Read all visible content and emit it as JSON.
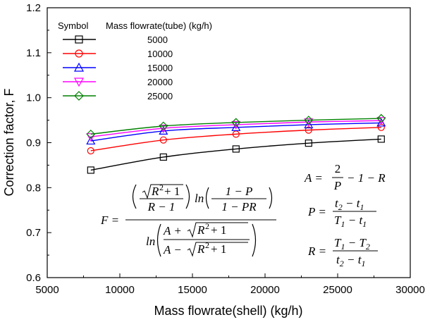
{
  "chart_data": {
    "type": "line",
    "title": "",
    "xlabel": "Mass flowrate(shell) (kg/h)",
    "ylabel": "Correction factor, F",
    "xlim": [
      5000,
      30000
    ],
    "ylim": [
      0.6,
      1.2
    ],
    "xticks": [
      5000,
      10000,
      15000,
      20000,
      25000,
      30000
    ],
    "yticks": [
      0.6,
      0.7,
      0.8,
      0.9,
      1.0,
      1.1,
      1.2
    ],
    "xtick_labels": [
      "5000",
      "10000",
      "15000",
      "20000",
      "25000",
      "30000"
    ],
    "ytick_labels": [
      "0.6",
      "0.7",
      "0.8",
      "0.9",
      "1.0",
      "1.1",
      "1.2"
    ],
    "grid": false,
    "legend": {
      "placement": "top-left",
      "header_symbol": "Symbol",
      "header_label": "Mass flowrate(tube) (kg/h)"
    },
    "x": [
      8000,
      13000,
      18000,
      23000,
      28000
    ],
    "series": [
      {
        "name": "5000",
        "color": "#000000",
        "marker": "square",
        "values": [
          0.839,
          0.868,
          0.886,
          0.899,
          0.908
        ]
      },
      {
        "name": "10000",
        "color": "#ff0000",
        "marker": "circle",
        "values": [
          0.882,
          0.906,
          0.919,
          0.928,
          0.934
        ]
      },
      {
        "name": "15000",
        "color": "#0000ff",
        "marker": "triangle-up",
        "values": [
          0.904,
          0.926,
          0.934,
          0.94,
          0.944
        ]
      },
      {
        "name": "20000",
        "color": "#ff00ff",
        "marker": "triangle-down",
        "values": [
          0.913,
          0.932,
          0.94,
          0.946,
          0.949
        ]
      },
      {
        "name": "25000",
        "color": "#008000",
        "marker": "diamond",
        "values": [
          0.919,
          0.937,
          0.945,
          0.95,
          0.954
        ]
      }
    ],
    "annotations": {
      "formula_F": {
        "lhs": "F =",
        "num_ln": "ln",
        "num_frac_num": "1 − P",
        "num_frac_den": "1 − PR",
        "root_radicand": "R",
        "root_plus": "+ 1",
        "r_minus_1": "R − 1",
        "den_ln": "ln",
        "den_top_a": "A +",
        "den_bot_a": "A −"
      },
      "formula_A": {
        "lhs": "A =",
        "frac_num": "2",
        "frac_den": "P",
        "rest": "− 1 − R"
      },
      "formula_P": {
        "lhs": "P =",
        "num_t": "t",
        "num_sub1": "2",
        "num_mid": " − t",
        "num_sub2": "1",
        "den_T": "T",
        "den_sub1": "1",
        "den_mid": " − t",
        "den_sub2": "1"
      },
      "formula_R": {
        "lhs": "R =",
        "num_T": "T",
        "num_sub1": "1",
        "num_mid": " − T",
        "num_sub2": "2",
        "den_t": "t",
        "den_sub1": "2",
        "den_mid": " − t",
        "den_sub2": "1"
      }
    }
  }
}
